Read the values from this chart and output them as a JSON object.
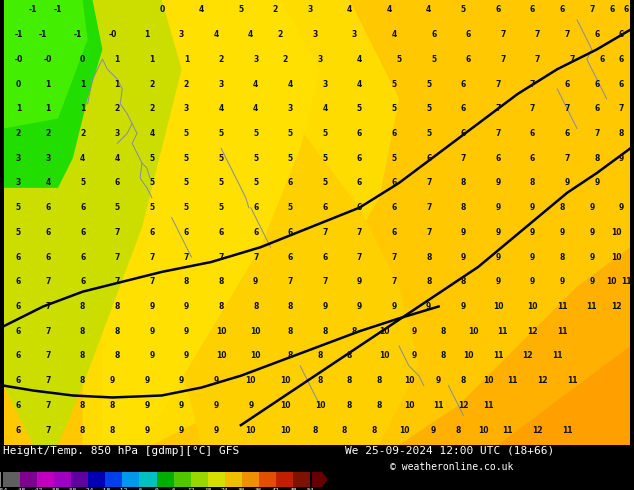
{
  "title_left": "Height/Temp. 850 hPa [gdmp][°C] GFS",
  "title_right": "We 25-09-2024 12:00 UTC (18+66)",
  "copyright": "© weatheronline.co.uk",
  "fig_width": 6.34,
  "fig_height": 4.9,
  "dpi": 100,
  "map_yellow": "#ffc800",
  "map_yellow2": "#ffdc00",
  "map_orange": "#ffaa00",
  "map_green": "#22dd00",
  "bottom_bg": "#000000",
  "colorbar_segments": [
    [
      "#505050",
      "#808080"
    ],
    [
      "#b000b8",
      "#c800c8"
    ],
    [
      "#d800e0",
      "#e800f0"
    ],
    [
      "#9800b8",
      "#a800c8"
    ],
    [
      "#6000a0",
      "#7000b0"
    ],
    [
      "#0000b0",
      "#0000d8"
    ],
    [
      "#0030e8",
      "#0060ff"
    ],
    [
      "#0098e8",
      "#00b8ff"
    ],
    [
      "#00c8c8",
      "#00e0e0"
    ],
    [
      "#00b800",
      "#00d000"
    ],
    [
      "#40c800",
      "#60dc00"
    ],
    [
      "#90d800",
      "#b0e800"
    ],
    [
      "#d8e000",
      "#f0f000"
    ],
    [
      "#f0c000",
      "#ffd000"
    ],
    [
      "#f09000",
      "#ffaa00"
    ],
    [
      "#e05000",
      "#ff6000"
    ],
    [
      "#c02000",
      "#e03000"
    ],
    [
      "#801000",
      "#a01800"
    ]
  ],
  "colorbar_labels": [
    "-54",
    "-48",
    "-42",
    "-38",
    "-30",
    "-24",
    "-18",
    "-12",
    "-6",
    "0",
    "6",
    "12",
    "18",
    "24",
    "30",
    "36",
    "42",
    "48",
    "54"
  ],
  "numbers": [
    [
      -1,
      -1,
      0,
      4,
      5,
      2,
      3,
      4,
      4,
      4,
      5,
      6,
      6,
      6,
      7,
      6,
      6,
      6,
      5,
      5,
      6,
      7,
      7,
      7,
      8
    ],
    [
      -1,
      -1,
      -1,
      0,
      1,
      3,
      4,
      4,
      2,
      3,
      3,
      4,
      6,
      6,
      7,
      7,
      7,
      6,
      6,
      6,
      6,
      7,
      8,
      9
    ],
    [
      0,
      0,
      0,
      1,
      1,
      1,
      2,
      3,
      2,
      3,
      4,
      5,
      5,
      6,
      7,
      7,
      7,
      6,
      6,
      6,
      7,
      7,
      8,
      9
    ],
    [
      0,
      1,
      1,
      1,
      2,
      2,
      3,
      4,
      4,
      3,
      4,
      5,
      5,
      6,
      7,
      7,
      6,
      6,
      6,
      7,
      8,
      8,
      9
    ],
    [
      1,
      1,
      1,
      2,
      2,
      3,
      4,
      4,
      3,
      4,
      5,
      5,
      5,
      6,
      7,
      7,
      7,
      6,
      7,
      8,
      9
    ],
    [
      2,
      2,
      2,
      3,
      4,
      5,
      5,
      5,
      5,
      5,
      6,
      6,
      5,
      6,
      7,
      6,
      6,
      7,
      8,
      9
    ],
    [
      3,
      3,
      4,
      4,
      5,
      5,
      5,
      5,
      5,
      5,
      6,
      5,
      6,
      7,
      6,
      6,
      7,
      8,
      9,
      8,
      10
    ],
    [
      3,
      4,
      5,
      6,
      5,
      5,
      5,
      5,
      6,
      5,
      6,
      6,
      7,
      8,
      9,
      8,
      9,
      9
    ],
    [
      5,
      6,
      6,
      5,
      5,
      5,
      5,
      6,
      5,
      6,
      6,
      6,
      7,
      8,
      9,
      9,
      8,
      9,
      9
    ],
    [
      5,
      6,
      6,
      7,
      6,
      6,
      6,
      6,
      6,
      7,
      7,
      6,
      7,
      9,
      9,
      9,
      9,
      9,
      10
    ],
    [
      6,
      6,
      6,
      7,
      7,
      7,
      7,
      7,
      6,
      6,
      7,
      7,
      8,
      9,
      9,
      9,
      8,
      9,
      10
    ],
    [
      6,
      7,
      6,
      7,
      7,
      8,
      8,
      9,
      7,
      7,
      9,
      7,
      8,
      8,
      9,
      9,
      9,
      9,
      10,
      11,
      10
    ],
    [
      6,
      7,
      8,
      8,
      9,
      9,
      8,
      8,
      8,
      9,
      9,
      9,
      9,
      9,
      10,
      10,
      11,
      11,
      12
    ],
    [
      6,
      7,
      8,
      8,
      9,
      9,
      10,
      10,
      8,
      8,
      8,
      10,
      9,
      8,
      10,
      11,
      12,
      11
    ]
  ]
}
